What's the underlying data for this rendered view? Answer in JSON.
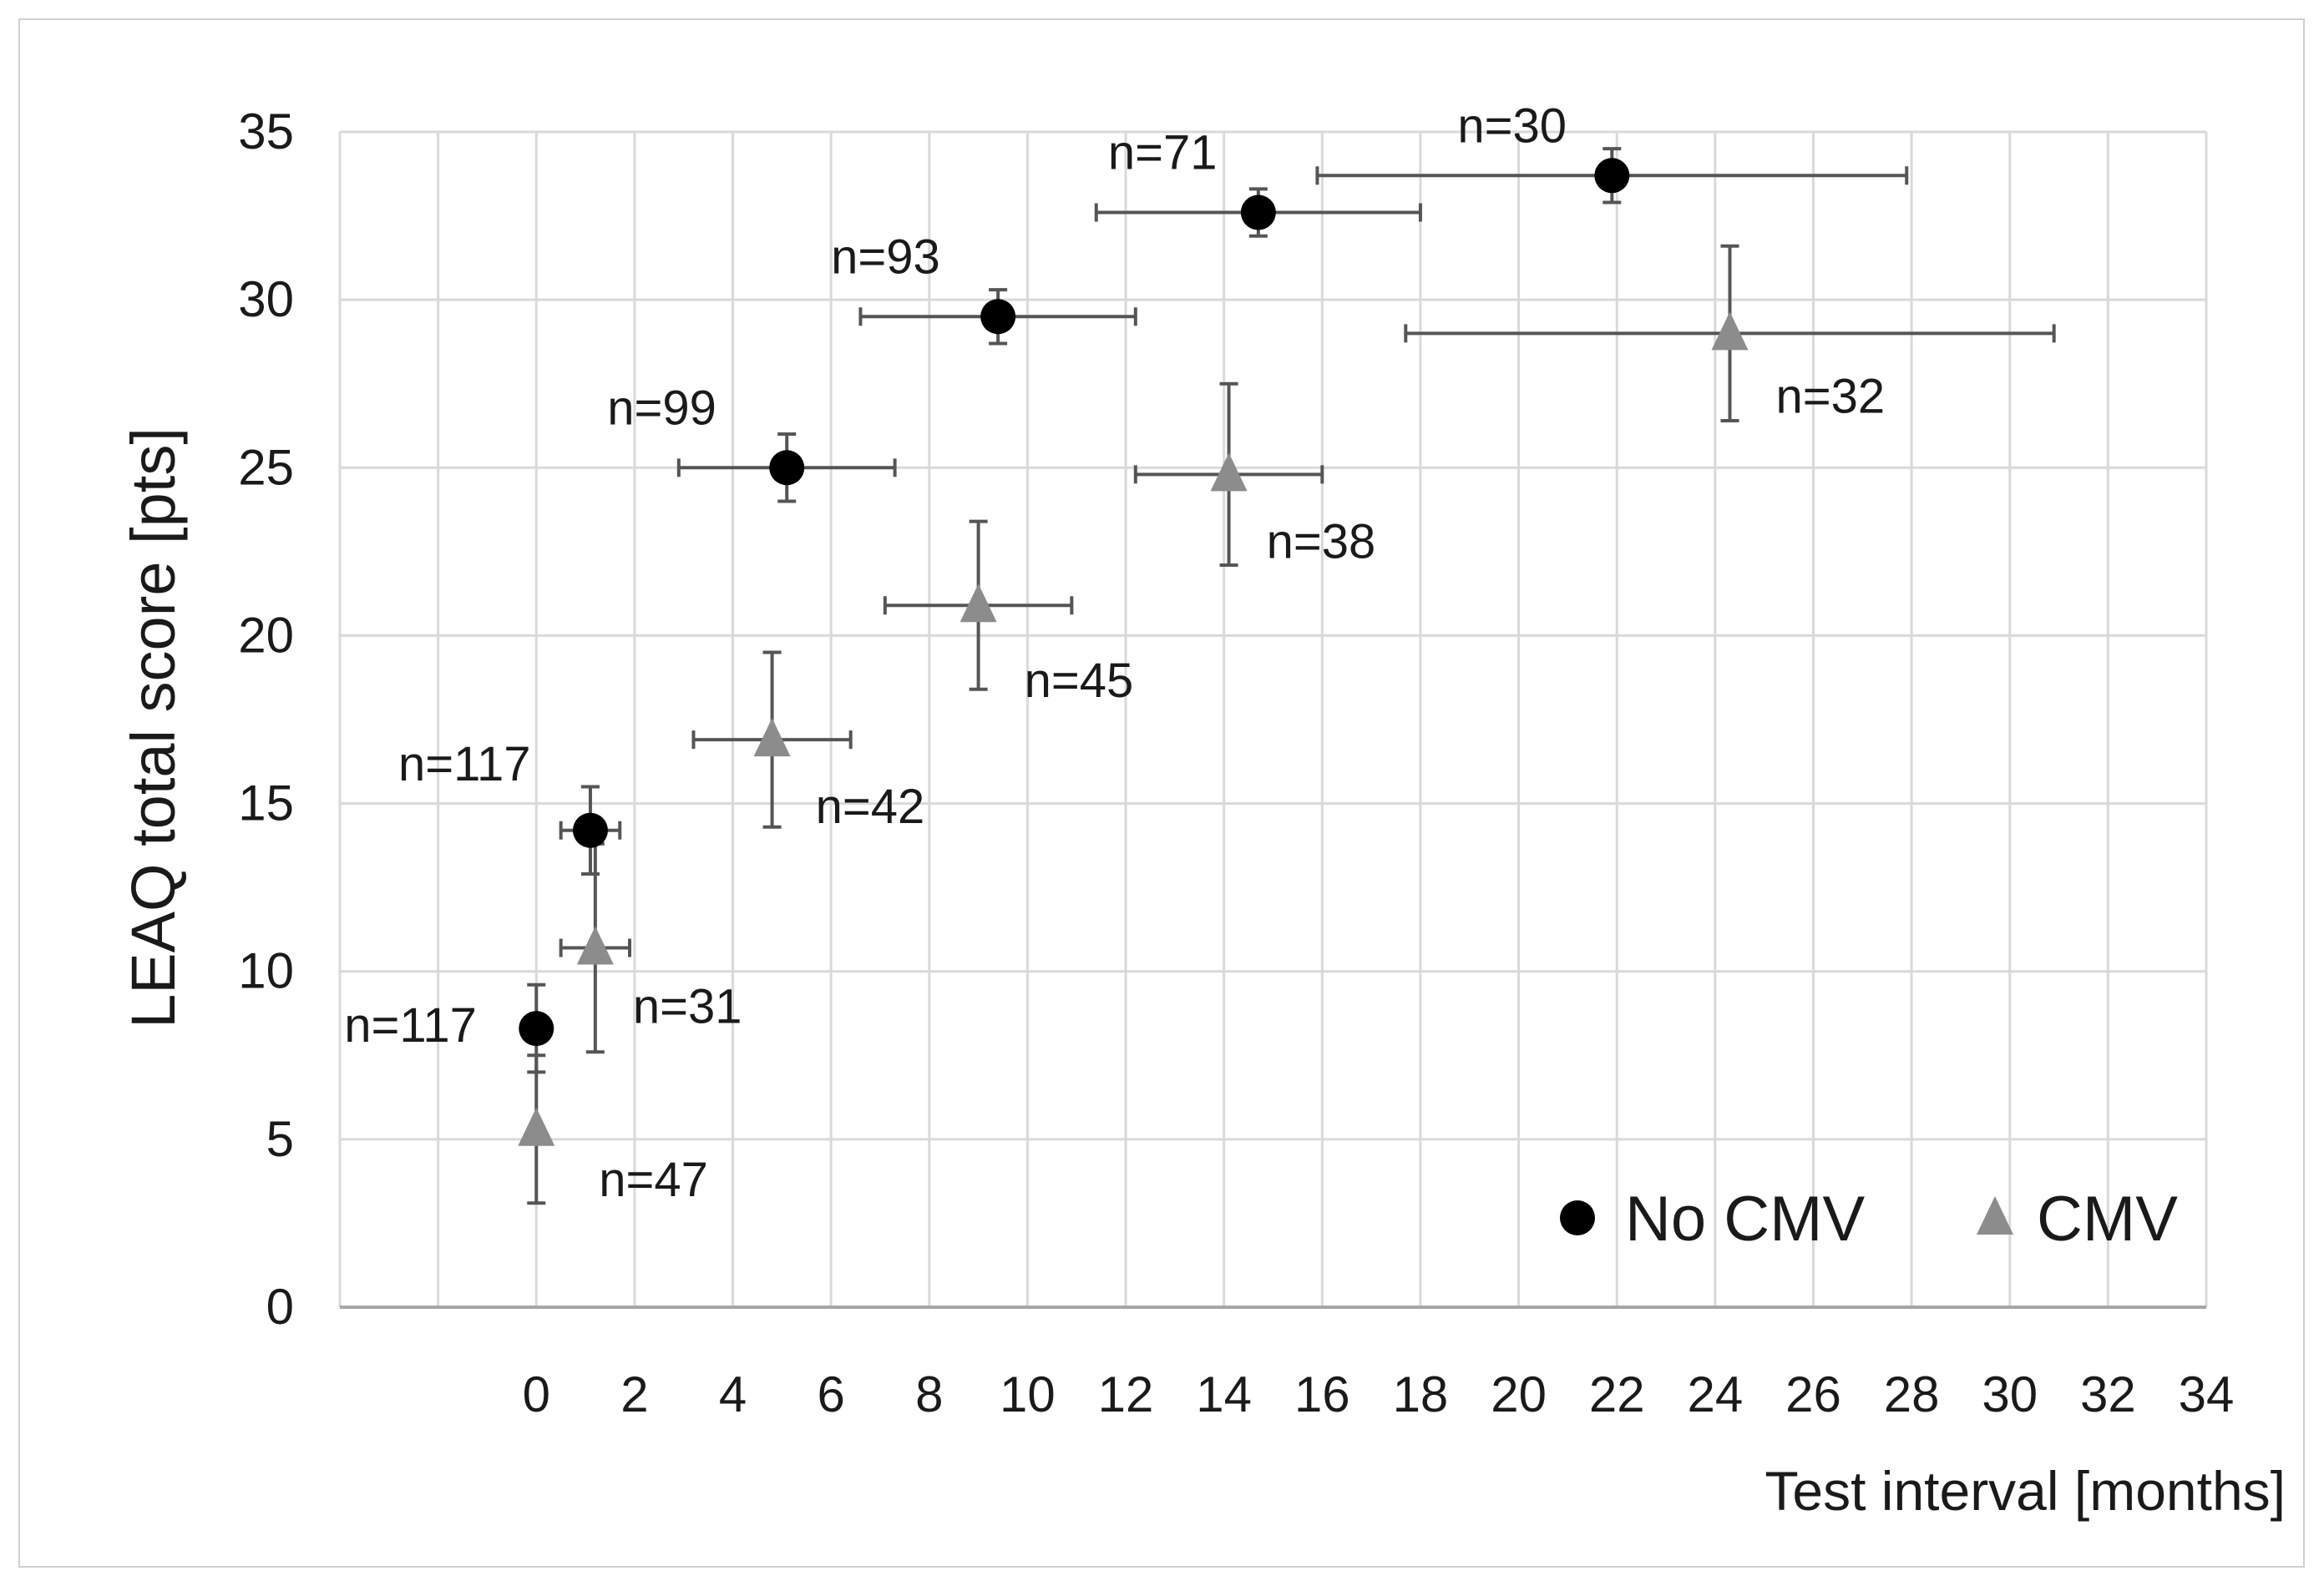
{
  "chart_data": {
    "type": "scatter",
    "title": "",
    "xlabel": "Test interval [months]",
    "ylabel": "LEAQ total score [pts]",
    "xlim": [
      -4,
      34
    ],
    "ylim": [
      0,
      35
    ],
    "x_ticks": [
      0,
      2,
      4,
      6,
      8,
      10,
      12,
      14,
      16,
      18,
      20,
      22,
      24,
      26,
      28,
      30,
      32,
      34
    ],
    "y_ticks": [
      0,
      5,
      10,
      15,
      20,
      25,
      30,
      35
    ],
    "grid": true,
    "legend_position": "bottom-right",
    "series": [
      {
        "name": "No CMV",
        "marker": "circle",
        "color": "#000000",
        "errorbar_color": "#555555",
        "points": [
          {
            "x": 0,
            "y": 8.3,
            "xerr": 0,
            "yerr": 1.3,
            "label": "n=117"
          },
          {
            "x": 1.1,
            "y": 14.2,
            "xerr": 0.6,
            "yerr": 1.3,
            "label": "n=117"
          },
          {
            "x": 5.1,
            "y": 25.0,
            "xerr": 2.2,
            "yerr": 1.0,
            "label": "n=99"
          },
          {
            "x": 9.4,
            "y": 29.5,
            "xerr": 2.8,
            "yerr": 0.8,
            "label": "n=93"
          },
          {
            "x": 14.7,
            "y": 32.6,
            "xerr": 3.3,
            "yerr": 0.7,
            "label": "n=71"
          },
          {
            "x": 21.9,
            "y": 33.7,
            "xerr": 6.0,
            "yerr": 0.8,
            "label": "n=30"
          }
        ]
      },
      {
        "name": "CMV",
        "marker": "triangle",
        "color": "#8c8c8c",
        "errorbar_color": "#555555",
        "points": [
          {
            "x": 0,
            "y": 5.3,
            "xerr": 0,
            "yerr": 2.2,
            "label": "n=47"
          },
          {
            "x": 1.2,
            "y": 10.7,
            "xerr": 0.7,
            "yerr": 3.1,
            "label": "n=31"
          },
          {
            "x": 4.8,
            "y": 16.9,
            "xerr": 1.6,
            "yerr": 2.6,
            "label": "n=42"
          },
          {
            "x": 9.0,
            "y": 20.9,
            "xerr": 1.9,
            "yerr": 2.5,
            "label": "n=45"
          },
          {
            "x": 14.1,
            "y": 24.8,
            "xerr": 1.9,
            "yerr": 2.7,
            "label": "n=38"
          },
          {
            "x": 24.3,
            "y": 29.0,
            "xerr": 6.6,
            "yerr": 2.6,
            "label": "n=32"
          }
        ]
      }
    ]
  }
}
